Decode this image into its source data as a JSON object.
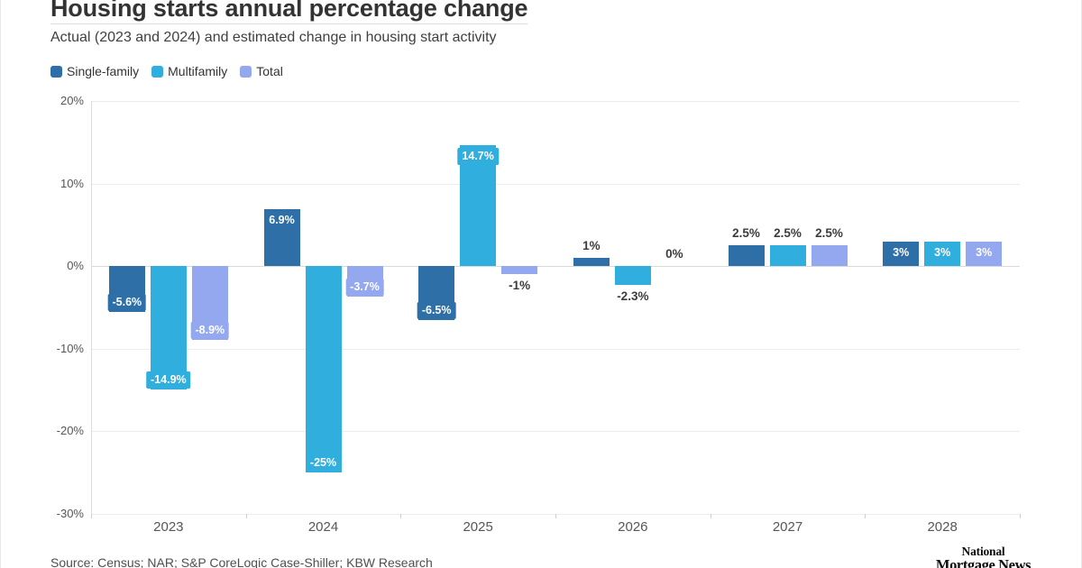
{
  "header": {
    "title": "Housing starts annual percentage change",
    "subtitle": "Actual (2023 and 2024) and estimated change in housing start activity"
  },
  "legend": [
    {
      "label": "Single-family",
      "color": "#2e6fa8"
    },
    {
      "label": "Multifamily",
      "color": "#30aedd"
    },
    {
      "label": "Total",
      "color": "#94a8ef"
    }
  ],
  "chart_data": {
    "type": "bar",
    "title": "Housing starts annual percentage change",
    "subtitle": "Actual (2023 and 2024) and estimated change in housing start activity",
    "categories": [
      "2023",
      "2024",
      "2025",
      "2026",
      "2027",
      "2028"
    ],
    "series": [
      {
        "name": "Single-family",
        "color": "#2e6fa8",
        "values": [
          -5.6,
          6.9,
          -6.5,
          1,
          2.5,
          3
        ]
      },
      {
        "name": "Multifamily",
        "color": "#30aedd",
        "values": [
          -14.9,
          -25,
          14.7,
          -2.3,
          2.5,
          3
        ]
      },
      {
        "name": "Total",
        "color": "#94a8ef",
        "values": [
          -8.9,
          -3.7,
          -1,
          0,
          2.5,
          3
        ]
      }
    ],
    "data_labels": [
      [
        "-5.6%",
        "-14.9%",
        "-8.9%"
      ],
      [
        "6.9%",
        "-25%",
        "-3.7%"
      ],
      [
        "-6.5%",
        "14.7%",
        "-1%"
      ],
      [
        "1%",
        "-2.3%",
        "0%"
      ],
      [
        "2.5%",
        "2.5%",
        "2.5%"
      ],
      [
        "3%",
        "3%",
        "3%"
      ]
    ],
    "ylim": [
      -30,
      20
    ],
    "y_ticks": [
      20,
      10,
      0,
      -10,
      -20,
      -30
    ],
    "y_tick_labels": [
      "20%",
      "10%",
      "0%",
      "-10%",
      "-20%",
      "-30%"
    ],
    "xlabel": "",
    "ylabel": "",
    "grid": true,
    "legend_position": "top-left"
  },
  "footer": {
    "source": "Source: Census; NAR; S&P CoreLogic Case-Shiller; KBW Research",
    "logo_line1": "National",
    "logo_line2": "Mortgage News"
  }
}
